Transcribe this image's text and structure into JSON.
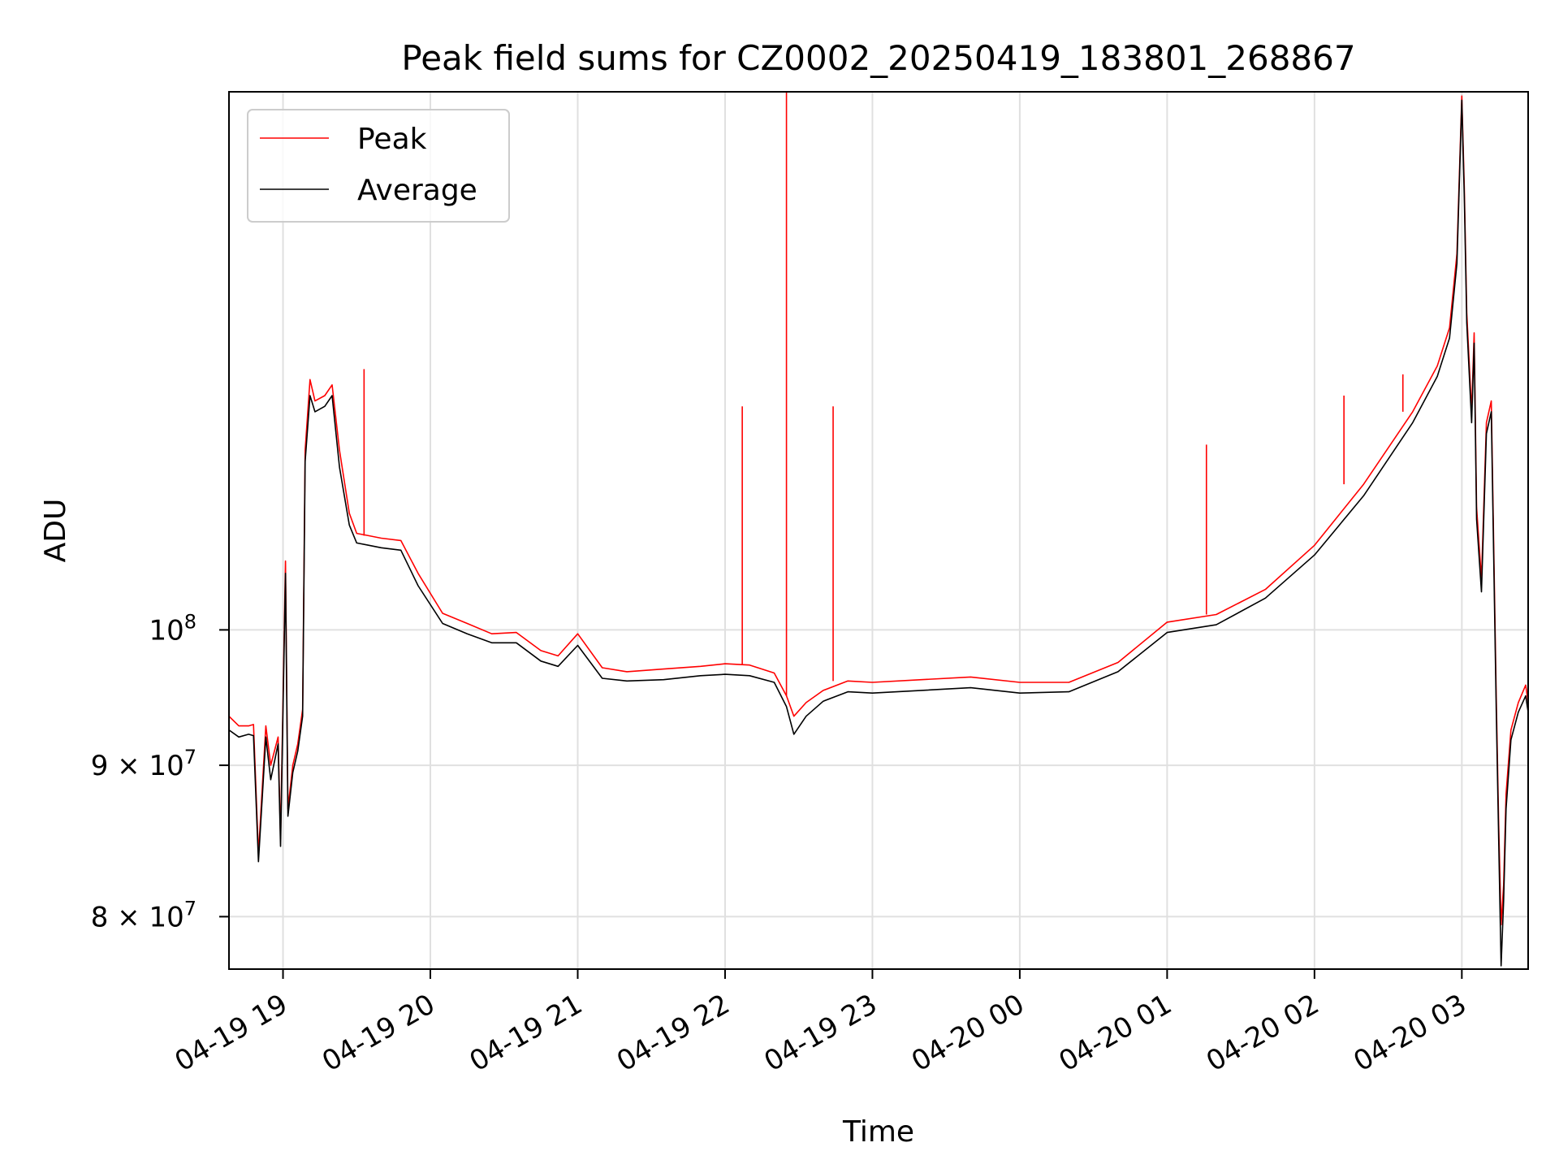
{
  "chart_data": {
    "type": "line",
    "title": "Peak field sums for CZ0002_20250419_183801_268867",
    "xlabel": "Time",
    "ylabel": "ADU",
    "x_scale": "time",
    "y_scale": "log",
    "xlim": [
      "2025-04-19 18:38",
      "2025-04-20 03:27"
    ],
    "ylim": [
      76800000,
      152000000
    ],
    "x_ticks": [
      {
        "value": "2025-04-19 19:00",
        "label": "04-19 19"
      },
      {
        "value": "2025-04-19 20:00",
        "label": "04-19 20"
      },
      {
        "value": "2025-04-19 21:00",
        "label": "04-19 21"
      },
      {
        "value": "2025-04-19 22:00",
        "label": "04-19 22"
      },
      {
        "value": "2025-04-19 23:00",
        "label": "04-19 23"
      },
      {
        "value": "2025-04-20 00:00",
        "label": "04-20 00"
      },
      {
        "value": "2025-04-20 01:00",
        "label": "04-20 01"
      },
      {
        "value": "2025-04-20 02:00",
        "label": "04-20 02"
      },
      {
        "value": "2025-04-20 03:00",
        "label": "04-20 03"
      }
    ],
    "y_ticks": [
      {
        "value": 80000000,
        "label_base": "8 × 10",
        "label_exp": "7"
      },
      {
        "value": 90000000,
        "label_base": "9 × 10",
        "label_exp": "7"
      },
      {
        "value": 100000000,
        "label_base": "10",
        "label_exp": "8"
      }
    ],
    "grid": true,
    "legend_position": "top-left",
    "series": [
      {
        "name": "Peak",
        "color": "#ff0000",
        "x": [
          "2025-04-19 18:38",
          "2025-04-19 18:42",
          "2025-04-19 18:46",
          "2025-04-19 18:48",
          "2025-04-19 18:50",
          "2025-04-19 18:53",
          "2025-04-19 18:55",
          "2025-04-19 18:58",
          "2025-04-19 18:59",
          "2025-04-19 19:01",
          "2025-04-19 19:02",
          "2025-04-19 19:04",
          "2025-04-19 19:06",
          "2025-04-19 19:08",
          "2025-04-19 19:09",
          "2025-04-19 19:11",
          "2025-04-19 19:13",
          "2025-04-19 19:17",
          "2025-04-19 19:20",
          "2025-04-19 19:23",
          "2025-04-19 19:27",
          "2025-04-19 19:30",
          "2025-04-19 19:35",
          "2025-04-19 19:40",
          "2025-04-19 19:48",
          "2025-04-19 19:55",
          "2025-04-19 20:05",
          "2025-04-19 20:15",
          "2025-04-19 20:25",
          "2025-04-19 20:35",
          "2025-04-19 20:45",
          "2025-04-19 20:52",
          "2025-04-19 21:00",
          "2025-04-19 21:10",
          "2025-04-19 21:20",
          "2025-04-19 21:35",
          "2025-04-19 21:50",
          "2025-04-19 22:00",
          "2025-04-19 22:10",
          "2025-04-19 22:20",
          "2025-04-19 22:25",
          "2025-04-19 22:28",
          "2025-04-19 22:33",
          "2025-04-19 22:40",
          "2025-04-19 22:50",
          "2025-04-19 23:00",
          "2025-04-19 23:20",
          "2025-04-19 23:40",
          "2025-04-20 00:00",
          "2025-04-20 00:20",
          "2025-04-20 00:40",
          "2025-04-20 01:00",
          "2025-04-20 01:20",
          "2025-04-20 01:40",
          "2025-04-20 02:00",
          "2025-04-20 02:20",
          "2025-04-20 02:40",
          "2025-04-20 02:50",
          "2025-04-20 02:55",
          "2025-04-20 02:58",
          "2025-04-20 03:00",
          "2025-04-20 03:01",
          "2025-04-20 03:02",
          "2025-04-20 03:04",
          "2025-04-20 03:05",
          "2025-04-20 03:06",
          "2025-04-20 03:08",
          "2025-04-20 03:10",
          "2025-04-20 03:12",
          "2025-04-20 03:14",
          "2025-04-20 03:15",
          "2025-04-20 03:16",
          "2025-04-20 03:17",
          "2025-04-20 03:18",
          "2025-04-20 03:20",
          "2025-04-20 03:23",
          "2025-04-20 03:26",
          "2025-04-20 03:27"
        ],
        "values": [
          93500000,
          92800000,
          92800000,
          92900000,
          84000000,
          92800000,
          90000000,
          92000000,
          85000000,
          105500000,
          87000000,
          90000000,
          91500000,
          94000000,
          115000000,
          121500000,
          119500000,
          120000000,
          121000000,
          115000000,
          109500000,
          107800000,
          107600000,
          107400000,
          107200000,
          104500000,
          101300000,
          100500000,
          99700000,
          99800000,
          98400000,
          98000000,
          99700000,
          97100000,
          96800000,
          97000000,
          97200000,
          97400000,
          97300000,
          96700000,
          95000000,
          93500000,
          94500000,
          95400000,
          96100000,
          96000000,
          96200000,
          96400000,
          96000000,
          96000000,
          97500000,
          100600000,
          101200000,
          103200000,
          106800000,
          112000000,
          118500000,
          122800000,
          126500000,
          134000000,
          151500000,
          141000000,
          128000000,
          118500000,
          126000000,
          110000000,
          104000000,
          117500000,
          119500000,
          95000000,
          86000000,
          79500000,
          82000000,
          88000000,
          92500000,
          94500000,
          95800000,
          94500000
        ]
      },
      {
        "name": "Average",
        "color": "#000000",
        "x": [
          "2025-04-19 18:38",
          "2025-04-19 18:42",
          "2025-04-19 18:46",
          "2025-04-19 18:48",
          "2025-04-19 18:50",
          "2025-04-19 18:53",
          "2025-04-19 18:55",
          "2025-04-19 18:58",
          "2025-04-19 18:59",
          "2025-04-19 19:01",
          "2025-04-19 19:02",
          "2025-04-19 19:04",
          "2025-04-19 19:06",
          "2025-04-19 19:08",
          "2025-04-19 19:09",
          "2025-04-19 19:11",
          "2025-04-19 19:13",
          "2025-04-19 19:17",
          "2025-04-19 19:20",
          "2025-04-19 19:23",
          "2025-04-19 19:27",
          "2025-04-19 19:30",
          "2025-04-19 19:35",
          "2025-04-19 19:40",
          "2025-04-19 19:48",
          "2025-04-19 19:55",
          "2025-04-19 20:05",
          "2025-04-19 20:15",
          "2025-04-19 20:25",
          "2025-04-19 20:35",
          "2025-04-19 20:45",
          "2025-04-19 20:52",
          "2025-04-19 21:00",
          "2025-04-19 21:10",
          "2025-04-19 21:20",
          "2025-04-19 21:35",
          "2025-04-19 21:50",
          "2025-04-19 22:00",
          "2025-04-19 22:10",
          "2025-04-19 22:20",
          "2025-04-19 22:25",
          "2025-04-19 22:28",
          "2025-04-19 22:33",
          "2025-04-19 22:40",
          "2025-04-19 22:50",
          "2025-04-19 23:00",
          "2025-04-19 23:20",
          "2025-04-19 23:40",
          "2025-04-20 00:00",
          "2025-04-20 00:20",
          "2025-04-20 00:40",
          "2025-04-20 01:00",
          "2025-04-20 01:20",
          "2025-04-20 01:40",
          "2025-04-20 02:00",
          "2025-04-20 02:20",
          "2025-04-20 02:40",
          "2025-04-20 02:50",
          "2025-04-20 02:55",
          "2025-04-20 02:58",
          "2025-04-20 03:00",
          "2025-04-20 03:01",
          "2025-04-20 03:02",
          "2025-04-20 03:04",
          "2025-04-20 03:05",
          "2025-04-20 03:06",
          "2025-04-20 03:08",
          "2025-04-20 03:10",
          "2025-04-20 03:12",
          "2025-04-20 03:14",
          "2025-04-20 03:15",
          "2025-04-20 03:16",
          "2025-04-20 03:17",
          "2025-04-20 03:18",
          "2025-04-20 03:20",
          "2025-04-20 03:23",
          "2025-04-20 03:26",
          "2025-04-20 03:27"
        ],
        "values": [
          92500000,
          92000000,
          92200000,
          92100000,
          83500000,
          92000000,
          89000000,
          91500000,
          84500000,
          104500000,
          86500000,
          89500000,
          91000000,
          93500000,
          114000000,
          120000000,
          118500000,
          119000000,
          120000000,
          113500000,
          108500000,
          107000000,
          106800000,
          106600000,
          106400000,
          103500000,
          100500000,
          99700000,
          99000000,
          99000000,
          97600000,
          97200000,
          98800000,
          96300000,
          96100000,
          96200000,
          96500000,
          96600000,
          96500000,
          96000000,
          94200000,
          92200000,
          93500000,
          94600000,
          95300000,
          95200000,
          95400000,
          95600000,
          95200000,
          95300000,
          96800000,
          99800000,
          100400000,
          102500000,
          106000000,
          111000000,
          117500000,
          121800000,
          125500000,
          133000000,
          151000000,
          140000000,
          127000000,
          117500000,
          125000000,
          109000000,
          103000000,
          116500000,
          118500000,
          94000000,
          85000000,
          77000000,
          81000000,
          87000000,
          91800000,
          93800000,
          95000000,
          93800000
        ]
      }
    ],
    "spikes": [
      {
        "series": "Peak",
        "x": "2025-04-19 22:25",
        "value": 152000000
      },
      {
        "series": "Peak",
        "x": "2025-04-19 22:07",
        "value": 119000000
      },
      {
        "series": "Peak",
        "x": "2025-04-19 22:44",
        "value": 119000000
      },
      {
        "series": "Peak",
        "x": "2025-04-19 19:33",
        "value": 122500000
      },
      {
        "series": "Peak",
        "x": "2025-04-20 02:36",
        "value": 122000000
      },
      {
        "series": "Peak",
        "x": "2025-04-20 02:12",
        "value": 120000000
      },
      {
        "series": "Peak",
        "x": "2025-04-20 01:16",
        "value": 115500000
      }
    ]
  }
}
